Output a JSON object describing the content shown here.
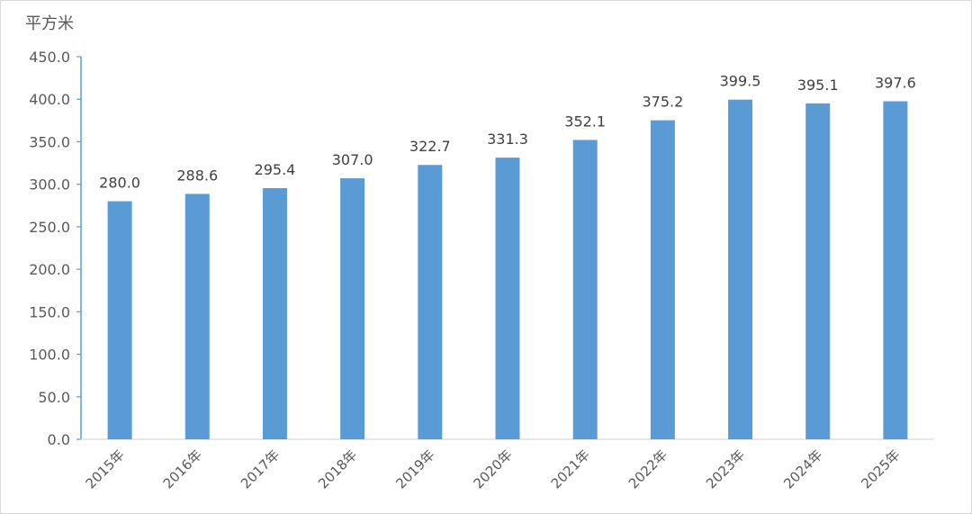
{
  "chart_data": {
    "type": "bar",
    "title": "",
    "ylabel": "平方米",
    "xlabel": "",
    "categories": [
      "2015年",
      "2016年",
      "2017年",
      "2018年",
      "2019年",
      "2020年",
      "2021年",
      "2022年",
      "2023年",
      "2024年",
      "2025年"
    ],
    "values": [
      280.0,
      288.6,
      295.4,
      307.0,
      322.7,
      331.3,
      352.1,
      375.2,
      399.5,
      395.1,
      397.6
    ],
    "value_labels": [
      "280.0",
      "288.6",
      "295.4",
      "307.0",
      "322.7",
      "331.3",
      "352.1",
      "375.2",
      "399.5",
      "395.1",
      "397.6"
    ],
    "ylim": [
      0,
      450
    ],
    "yticks": [
      "0.0",
      "50.0",
      "100.0",
      "150.0",
      "200.0",
      "250.0",
      "300.0",
      "350.0",
      "400.0",
      "450.0"
    ],
    "grid": false,
    "legend": "none",
    "colors": {
      "bar": "#5b9bd5",
      "axis": "#5b9bd5",
      "text": "#595959"
    }
  }
}
